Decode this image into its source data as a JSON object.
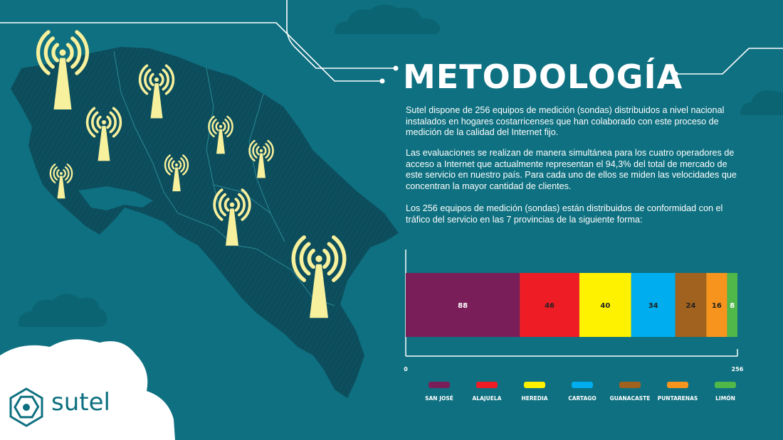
{
  "slide": {
    "title": "METODOLOGÍA",
    "paragraphs": [
      "Sutel dispone de 256 equipos de medición (sondas) distribuidos a nivel nacional instalados en hogares costarricenses que han colaborado con este proceso de medición de la calidad del Internet fijo.",
      "Las evaluaciones se realizan de manera simultánea para los cuatro operadores de acceso a Internet que actualmente representan el 94,3%  del total de mercado de este servicio en nuestro país. Para cada uno de ellos se miden las velocidades que concentran la mayor cantidad de clientes.",
      "Los 256 equipos de medición (sondas) están distribuidos de conformidad con el tráfico del servicio en las 7 provincias de la siguiente forma:"
    ],
    "logo_text": "sutel",
    "icons": [
      "antenna-icon",
      "sutel-logo-icon",
      "cloud-icon"
    ],
    "colors": {
      "background": "#0e7080",
      "map": "#0d4f5e",
      "antenna": "#f7f09c"
    }
  },
  "chart_data": {
    "type": "bar",
    "orientation": "horizontal",
    "stacked": true,
    "title": "",
    "xlabel": "",
    "ylabel": "",
    "xlim": [
      0,
      256
    ],
    "tick_labels": [
      "0",
      "256"
    ],
    "grid": false,
    "legend_position": "bottom",
    "series": [
      {
        "name": "SAN JOSÉ",
        "values": [
          88
        ],
        "label": "88",
        "color": "#7a1e5a"
      },
      {
        "name": "ALAJUELA",
        "values": [
          46
        ],
        "label": "46",
        "color": "#ee1d25"
      },
      {
        "name": "HEREDIA",
        "values": [
          40
        ],
        "label": "40",
        "color": "#fff200"
      },
      {
        "name": "CARTAGO",
        "values": [
          34
        ],
        "label": "34",
        "color": "#00aeef"
      },
      {
        "name": "GUANACASTE",
        "values": [
          24
        ],
        "label": "24",
        "color": "#a0621e"
      },
      {
        "name": "PUNTARENAS",
        "values": [
          16
        ],
        "label": "16",
        "color": "#f7941d"
      },
      {
        "name": "LIMÓN",
        "values": [
          8
        ],
        "label": "8",
        "color": "#50b848"
      }
    ]
  }
}
